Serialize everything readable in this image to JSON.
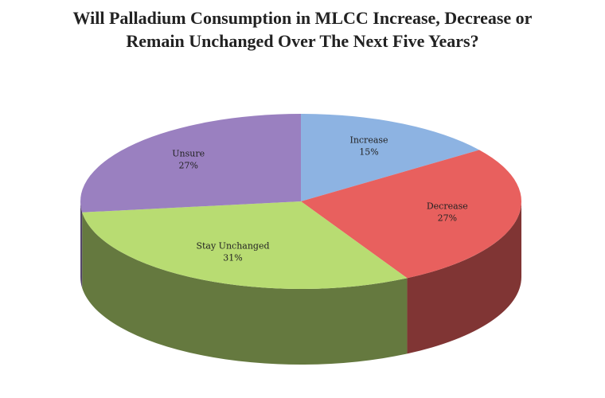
{
  "chart_data": {
    "type": "pie3d",
    "title": "Will Palladium Consumption in MLCC Increase, Decrease or Remain Unchanged Over The Next Five Years?",
    "categories": [
      "Increase",
      "Decrease",
      "Stay Unchanged",
      "Unsure"
    ],
    "values": [
      15,
      27,
      31,
      27
    ],
    "value_labels": [
      "15%",
      "27%",
      "31%",
      "27%"
    ],
    "colors": [
      "#8db3e2",
      "#e8605e",
      "#b8dc72",
      "#9a80c0"
    ]
  }
}
